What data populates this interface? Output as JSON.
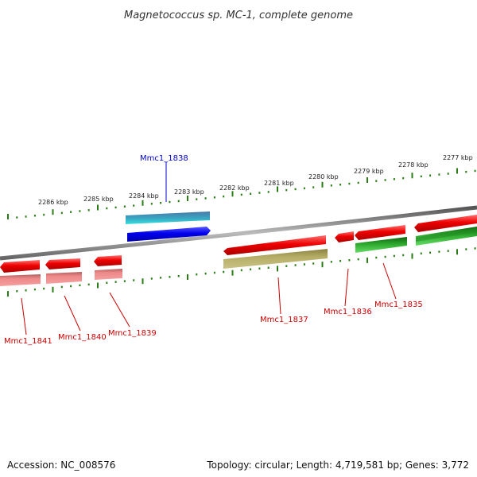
{
  "title": "Magnetococcus sp. MC-1, complete genome",
  "scale": {
    "unit": "kbp",
    "labels": [
      "2286 kbp",
      "2285 kbp",
      "2284 kbp",
      "2283 kbp",
      "2282 kbp",
      "2281 kbp",
      "2280 kbp",
      "2279 kbp",
      "2278 kbp",
      "2277 kbp"
    ]
  },
  "gene_labels": [
    {
      "name": "Mmc1_1838",
      "color": "#0000cc"
    },
    {
      "name": "Mmc1_1841",
      "color": "#cc0000"
    },
    {
      "name": "Mmc1_1840",
      "color": "#cc0000"
    },
    {
      "name": "Mmc1_1839",
      "color": "#cc0000"
    },
    {
      "name": "Mmc1_1837",
      "color": "#cc0000"
    },
    {
      "name": "Mmc1_1836",
      "color": "#cc0000"
    },
    {
      "name": "Mmc1_1835",
      "color": "#cc0000"
    }
  ],
  "footer": {
    "accession": "Accession: NC_008576",
    "summary": "Topology: circular; Length: 4,719,581 bp; Genes: 3,772"
  },
  "colors": {
    "tick": "#2a7d14",
    "backbone": "#888888",
    "cds_red": "#ee0000",
    "cds_pink": "#ee8888",
    "cds_olive": "#b5ad66",
    "cds_green": "#2ea82e",
    "cds_blue": "#0000ee",
    "cds_teal": "#3aa3c0"
  }
}
